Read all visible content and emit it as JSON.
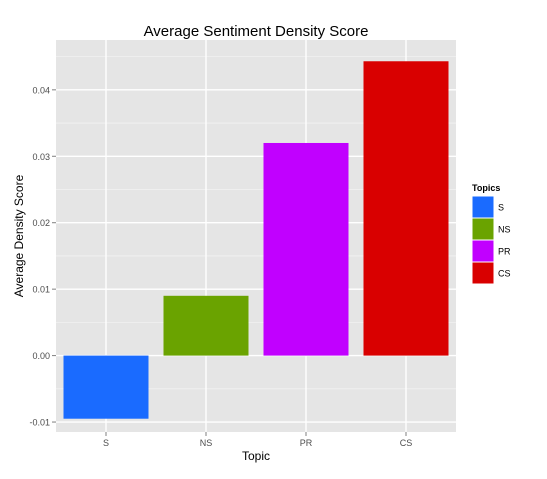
{
  "chart_data": {
    "type": "bar",
    "title": "Average Sentiment Density Score",
    "xlabel": "Topic",
    "ylabel": "Average Density Score",
    "categories": [
      "S",
      "NS",
      "PR",
      "CS"
    ],
    "values": [
      -0.0095,
      0.009,
      0.032,
      0.0443
    ],
    "colors": [
      "#1a6bff",
      "#6aa300",
      "#c100ff",
      "#d90000"
    ],
    "ylim": [
      -0.0115,
      0.0475
    ],
    "yticks": [
      -0.01,
      0.0,
      0.01,
      0.02,
      0.03,
      0.04
    ],
    "ytick_labels": [
      "-0.01",
      "0.00",
      "0.01",
      "0.02",
      "0.03",
      "0.04"
    ],
    "grid": true,
    "background": "#e5e5e5",
    "legend": {
      "title": "Topics",
      "position": "right",
      "entries": [
        "S",
        "NS",
        "PR",
        "CS"
      ]
    }
  }
}
